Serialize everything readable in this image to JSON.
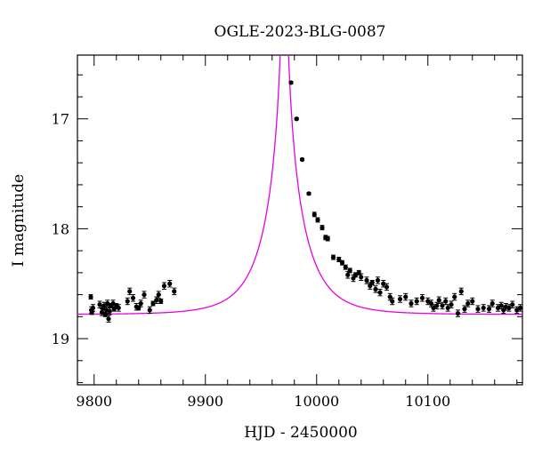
{
  "chart_data": {
    "type": "scatter",
    "title": "OGLE-2023-BLG-0087",
    "xlabel": "HJD - 2450000",
    "ylabel": "I magnitude",
    "xlim": [
      9785,
      10185
    ],
    "ylim": [
      19.42,
      16.42
    ],
    "y_inverted": true,
    "x_ticks": [
      9800,
      9900,
      10000,
      10100
    ],
    "y_ticks": [
      17,
      18,
      19
    ],
    "grid": false,
    "model_color": "#e600e6",
    "point_color": "#000000",
    "model": {
      "name": "",
      "type": "microlensing-fit",
      "t0": 9971,
      "u0": 0.04,
      "tE": 35,
      "baseline_mag": 18.78,
      "blend_fraction": 1.0
    },
    "series": [
      {
        "name": "",
        "points": [
          [
            9797,
            18.62,
            0.02
          ],
          [
            9797.5,
            18.74,
            0.03
          ],
          [
            9798,
            18.76,
            0.02
          ],
          [
            9799,
            18.72,
            0.03
          ],
          [
            9805,
            18.69,
            0.03
          ],
          [
            9807,
            18.76,
            0.03
          ],
          [
            9808,
            18.72,
            0.02
          ],
          [
            9809,
            18.7,
            0.03
          ],
          [
            9810,
            18.78,
            0.02
          ],
          [
            9811,
            18.74,
            0.03
          ],
          [
            9812,
            18.68,
            0.03
          ],
          [
            9813,
            18.82,
            0.03
          ],
          [
            9814,
            18.75,
            0.03
          ],
          [
            9815,
            18.7,
            0.02
          ],
          [
            9817,
            18.68,
            0.03
          ],
          [
            9818,
            18.73,
            0.02
          ],
          [
            9820,
            18.7,
            0.02
          ],
          [
            9822,
            18.72,
            0.03
          ],
          [
            9830,
            18.66,
            0.03
          ],
          [
            9832,
            18.57,
            0.03
          ],
          [
            9835,
            18.63,
            0.03
          ],
          [
            9838,
            18.71,
            0.03
          ],
          [
            9840,
            18.72,
            0.02
          ],
          [
            9842,
            18.68,
            0.03
          ],
          [
            9845,
            18.6,
            0.03
          ],
          [
            9850,
            18.74,
            0.03
          ],
          [
            9853,
            18.68,
            0.02
          ],
          [
            9856,
            18.65,
            0.03
          ],
          [
            9858,
            18.6,
            0.03
          ],
          [
            9860,
            18.66,
            0.02
          ],
          [
            9863,
            18.52,
            0.03
          ],
          [
            9868,
            18.5,
            0.03
          ],
          [
            9872,
            18.57,
            0.03
          ],
          [
            9977,
            16.67,
            0.01
          ],
          [
            9982,
            17.0,
            0.01
          ],
          [
            9987,
            17.37,
            0.01
          ],
          [
            9993,
            17.68,
            0.01
          ],
          [
            9998,
            17.87,
            0.02
          ],
          [
            10001,
            17.92,
            0.02
          ],
          [
            10005,
            17.99,
            0.02
          ],
          [
            10008,
            18.08,
            0.02
          ],
          [
            10010,
            18.09,
            0.02
          ],
          [
            10015,
            18.26,
            0.02
          ],
          [
            10020,
            18.28,
            0.02
          ],
          [
            10023,
            18.31,
            0.02
          ],
          [
            10026,
            18.35,
            0.02
          ],
          [
            10028,
            18.42,
            0.03
          ],
          [
            10030,
            18.38,
            0.02
          ],
          [
            10033,
            18.45,
            0.03
          ],
          [
            10035,
            18.42,
            0.02
          ],
          [
            10038,
            18.4,
            0.02
          ],
          [
            10040,
            18.44,
            0.03
          ],
          [
            10045,
            18.47,
            0.03
          ],
          [
            10048,
            18.52,
            0.03
          ],
          [
            10050,
            18.49,
            0.02
          ],
          [
            10053,
            18.55,
            0.03
          ],
          [
            10055,
            18.47,
            0.03
          ],
          [
            10057,
            18.58,
            0.03
          ],
          [
            10060,
            18.5,
            0.03
          ],
          [
            10063,
            18.53,
            0.03
          ],
          [
            10066,
            18.62,
            0.03
          ],
          [
            10068,
            18.66,
            0.03
          ],
          [
            10075,
            18.64,
            0.03
          ],
          [
            10080,
            18.62,
            0.03
          ],
          [
            10085,
            18.68,
            0.03
          ],
          [
            10090,
            18.66,
            0.03
          ],
          [
            10095,
            18.63,
            0.03
          ],
          [
            10100,
            18.66,
            0.03
          ],
          [
            10103,
            18.68,
            0.03
          ],
          [
            10105,
            18.72,
            0.03
          ],
          [
            10108,
            18.7,
            0.03
          ],
          [
            10110,
            18.65,
            0.03
          ],
          [
            10113,
            18.7,
            0.03
          ],
          [
            10116,
            18.66,
            0.03
          ],
          [
            10118,
            18.72,
            0.03
          ],
          [
            10121,
            18.69,
            0.03
          ],
          [
            10124,
            18.62,
            0.03
          ],
          [
            10127,
            18.77,
            0.03
          ],
          [
            10130,
            18.57,
            0.03
          ],
          [
            10133,
            18.73,
            0.03
          ],
          [
            10136,
            18.68,
            0.03
          ],
          [
            10140,
            18.66,
            0.03
          ],
          [
            10145,
            18.73,
            0.03
          ],
          [
            10150,
            18.72,
            0.03
          ],
          [
            10155,
            18.73,
            0.03
          ],
          [
            10158,
            18.68,
            0.03
          ],
          [
            10163,
            18.72,
            0.03
          ],
          [
            10166,
            18.7,
            0.03
          ],
          [
            10168,
            18.74,
            0.03
          ],
          [
            10170,
            18.71,
            0.03
          ],
          [
            10173,
            18.72,
            0.03
          ],
          [
            10176,
            18.69,
            0.03
          ],
          [
            10180,
            18.74,
            0.03
          ],
          [
            10183,
            18.72,
            0.03
          ]
        ]
      }
    ]
  }
}
